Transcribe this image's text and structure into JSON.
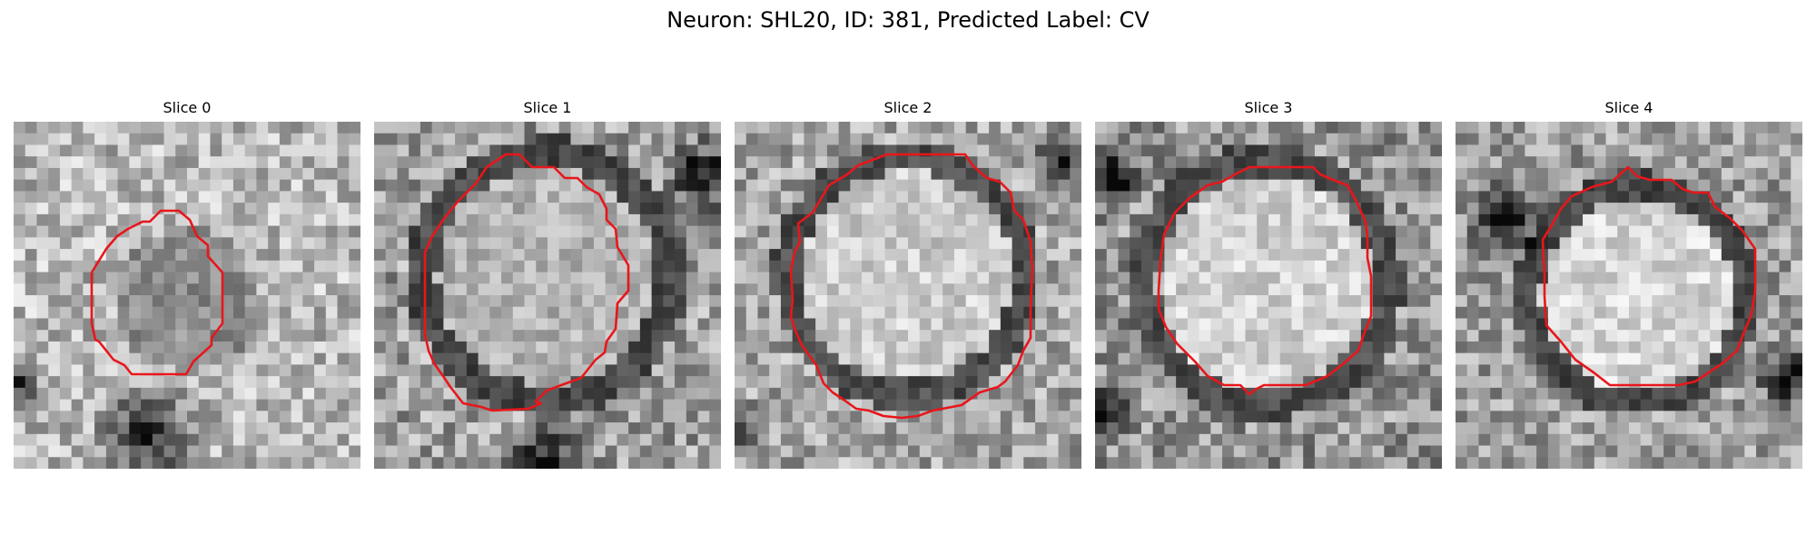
{
  "figure": {
    "title": "Neuron: SHL20, ID: 381, Predicted Label: CV"
  },
  "panels": [
    {
      "title": "Slice 0"
    },
    {
      "title": "Slice 1"
    },
    {
      "title": "Slice 2"
    },
    {
      "title": "Slice 3"
    },
    {
      "title": "Slice 4"
    }
  ],
  "colors": {
    "contour": "#e8161b",
    "background": "#ffffff"
  }
}
